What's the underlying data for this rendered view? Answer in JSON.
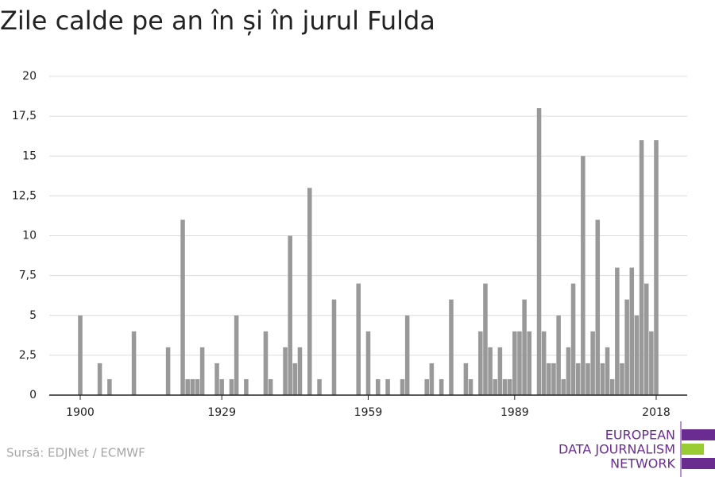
{
  "chart_data": {
    "type": "bar",
    "title": "Zile calde pe an în și în jurul Fulda",
    "x": [
      1900,
      1901,
      1902,
      1903,
      1904,
      1905,
      1906,
      1907,
      1908,
      1909,
      1910,
      1911,
      1912,
      1913,
      1914,
      1915,
      1916,
      1917,
      1918,
      1919,
      1920,
      1921,
      1922,
      1923,
      1924,
      1925,
      1926,
      1927,
      1928,
      1929,
      1930,
      1931,
      1932,
      1933,
      1934,
      1935,
      1936,
      1937,
      1938,
      1939,
      1940,
      1941,
      1942,
      1943,
      1944,
      1945,
      1946,
      1947,
      1948,
      1949,
      1950,
      1951,
      1952,
      1953,
      1954,
      1955,
      1956,
      1957,
      1958,
      1959,
      1960,
      1961,
      1962,
      1963,
      1964,
      1965,
      1966,
      1967,
      1968,
      1969,
      1970,
      1971,
      1972,
      1973,
      1974,
      1975,
      1976,
      1977,
      1978,
      1979,
      1980,
      1981,
      1982,
      1983,
      1984,
      1985,
      1986,
      1987,
      1988,
      1989,
      1990,
      1991,
      1992,
      1993,
      1994,
      1995,
      1996,
      1997,
      1998,
      1999,
      2000,
      2001,
      2002,
      2003,
      2004,
      2005,
      2006,
      2007,
      2008,
      2009,
      2010,
      2011,
      2012,
      2013,
      2014,
      2015,
      2016,
      2017,
      2018
    ],
    "values": [
      5,
      0,
      0,
      0,
      2,
      0,
      1,
      0,
      0,
      0,
      0,
      4,
      0,
      0,
      0,
      0,
      0,
      0,
      3,
      0,
      0,
      11,
      1,
      1,
      1,
      3,
      0,
      0,
      2,
      1,
      0,
      1,
      5,
      0,
      1,
      0,
      0,
      0,
      4,
      1,
      0,
      0,
      3,
      10,
      2,
      3,
      0,
      13,
      0,
      1,
      0,
      0,
      6,
      0,
      0,
      0,
      0,
      7,
      0,
      4,
      0,
      1,
      0,
      1,
      0,
      0,
      1,
      5,
      0,
      0,
      0,
      1,
      2,
      0,
      1,
      0,
      6,
      0,
      0,
      2,
      1,
      0,
      4,
      7,
      3,
      1,
      3,
      1,
      1,
      4,
      4,
      6,
      4,
      0,
      18,
      4,
      2,
      2,
      5,
      1,
      3,
      7,
      2,
      15,
      2,
      4,
      11,
      2,
      3,
      1,
      8,
      2,
      6,
      8,
      5,
      16,
      7,
      4,
      16
    ],
    "color": "#999999",
    "xlim": [
      1900,
      2018
    ],
    "xticks": [
      1900,
      1929,
      1959,
      1989,
      2018
    ],
    "ylim": [
      0,
      20
    ],
    "yticks": [
      0,
      {
        "value": 2.5,
        "label": "2,5"
      },
      5,
      {
        "value": 7.5,
        "label": "7,5"
      },
      10,
      {
        "value": 12.5,
        "label": "12,5"
      },
      15,
      {
        "value": 17.5,
        "label": "17,5"
      },
      20
    ],
    "grid": true
  },
  "source": "Sursă: EDJNet / ECMWF",
  "logo": [
    "EUROPEAN",
    "DATA JOURNALISM",
    "NETWORK"
  ]
}
